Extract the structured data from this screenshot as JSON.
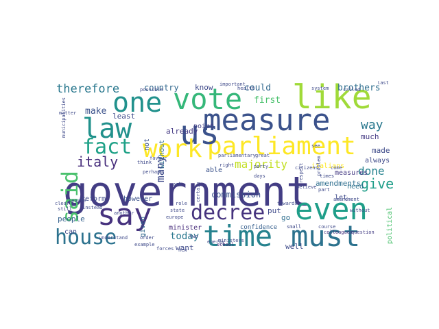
{
  "word_cloud": {
    "words": [
      {
        "text": "government",
        "color": "#433d84"
      },
      {
        "text": "measure",
        "color": "#3b528b"
      },
      {
        "text": "parliament",
        "color": "#fde725"
      },
      {
        "text": "vote",
        "color": "#35b779"
      },
      {
        "text": "like",
        "color": "#a0da39"
      },
      {
        "text": "one",
        "color": "#21918c"
      },
      {
        "text": "us",
        "color": "#3b528b"
      },
      {
        "text": "law",
        "color": "#21918c"
      },
      {
        "text": "fact",
        "color": "#1fa187"
      },
      {
        "text": "work",
        "color": "#fde725"
      },
      {
        "text": "said",
        "color": "#4ac16d"
      },
      {
        "text": "decree",
        "color": "#46337e"
      },
      {
        "text": "say",
        "color": "#46327e"
      },
      {
        "text": "even",
        "color": "#1f9e89"
      },
      {
        "text": "time",
        "color": "#26828e"
      },
      {
        "text": "must",
        "color": "#2c728e"
      },
      {
        "text": "house",
        "color": "#2c728e"
      },
      {
        "text": "italy",
        "color": "#472d7b"
      },
      {
        "text": "majority",
        "color": "#c2df23"
      },
      {
        "text": "therefore",
        "color": "#2a788e"
      },
      {
        "text": "country",
        "color": "#31688e"
      },
      {
        "text": "know",
        "color": "#3e4989"
      },
      {
        "text": "could",
        "color": "#31688e"
      },
      {
        "text": "brothers",
        "color": "#2e6e8e"
      },
      {
        "text": "first",
        "color": "#4ac16d"
      },
      {
        "text": "way",
        "color": "#2a788e"
      },
      {
        "text": "many",
        "color": "#3e4a89"
      },
      {
        "text": "done",
        "color": "#26828e"
      },
      {
        "text": "give",
        "color": "#1f9e89"
      },
      {
        "text": "amendments",
        "color": "#2e6e8e"
      },
      {
        "text": "least",
        "color": "#3e4989"
      },
      {
        "text": "make",
        "color": "#3b528b"
      },
      {
        "text": "already",
        "color": "#443983"
      },
      {
        "text": "not",
        "color": "#3b528b"
      },
      {
        "text": "point",
        "color": "#424086"
      },
      {
        "text": "without",
        "color": "#2e6e8e"
      },
      {
        "text": "able",
        "color": "#3b528b"
      },
      {
        "text": "italians",
        "color": "#fde725"
      },
      {
        "text": "much",
        "color": "#443983"
      },
      {
        "text": "made",
        "color": "#3e4a89"
      },
      {
        "text": "always",
        "color": "#3e4989"
      },
      {
        "text": "measures",
        "color": "#443983"
      },
      {
        "text": "need",
        "color": "#2c728e"
      },
      {
        "text": "let",
        "color": "#3e4989"
      },
      {
        "text": "go",
        "color": "#2e6e8e"
      },
      {
        "text": "reform",
        "color": "#3e4a89"
      },
      {
        "text": "however",
        "color": "#3b528b"
      },
      {
        "text": "given",
        "color": "#31688e"
      },
      {
        "text": "people",
        "color": "#35608d"
      },
      {
        "text": "can",
        "color": "#3e4a89"
      },
      {
        "text": "today",
        "color": "#2a788e"
      },
      {
        "text": "commission",
        "color": "#3b528b"
      },
      {
        "text": "put",
        "color": "#3e4989"
      },
      {
        "text": "minister",
        "color": "#472d7b"
      },
      {
        "text": "want",
        "color": "#3e4989"
      },
      {
        "text": "well",
        "color": "#3e4a89"
      },
      {
        "text": "political",
        "color": "#4ac16d"
      },
      {
        "text": "confidence",
        "color": "#355f8d"
      },
      {
        "text": "colleagues",
        "color": "#46327e"
      },
      {
        "text": "question",
        "color": "#433d84"
      },
      {
        "text": "school",
        "color": "#482475"
      },
      {
        "text": "parliamentary",
        "color": "#3e4989"
      },
      {
        "text": "great",
        "color": "#3e4989"
      },
      {
        "text": "important",
        "color": "#3e4989"
      },
      {
        "text": "health",
        "color": "#3e4989"
      },
      {
        "text": "system",
        "color": "#3e4989"
      },
      {
        "text": "called",
        "color": "#3e4989"
      },
      {
        "text": "last",
        "color": "#3e4989"
      },
      {
        "text": "possible",
        "color": "#3e4989"
      },
      {
        "text": "role",
        "color": "#3e4989"
      },
      {
        "text": "ask",
        "color": "#3e4989"
      },
      {
        "text": "days",
        "color": "#3e4989"
      },
      {
        "text": "believe",
        "color": "#3e4989"
      },
      {
        "text": "part",
        "color": "#3e4989"
      },
      {
        "text": "course",
        "color": "#3e4989"
      },
      {
        "text": "small",
        "color": "#3e4989"
      },
      {
        "text": "perhaps",
        "color": "#3e4989"
      },
      {
        "text": "favour",
        "color": "#3e4989"
      },
      {
        "text": "party",
        "color": "#3e4989"
      },
      {
        "text": "think",
        "color": "#3e4989"
      },
      {
        "text": "europe",
        "color": "#3e4989"
      },
      {
        "text": "state",
        "color": "#3e4989"
      },
      {
        "text": "certain",
        "color": "#3e4989"
      },
      {
        "text": "energy",
        "color": "#3e4989"
      },
      {
        "text": "two",
        "color": "#3e4989"
      },
      {
        "text": "forces",
        "color": "#3e4989"
      },
      {
        "text": "order",
        "color": "#3e4989"
      },
      {
        "text": "example",
        "color": "#3e4989"
      },
      {
        "text": "new",
        "color": "#3e4989"
      },
      {
        "text": "understand",
        "color": "#3e4989"
      },
      {
        "text": "clear",
        "color": "#3e4989"
      },
      {
        "text": "senate",
        "color": "#3e4989"
      },
      {
        "text": "instead",
        "color": "#3e4989"
      },
      {
        "text": "still",
        "color": "#3e4989"
      },
      {
        "text": "another",
        "color": "#3e4989"
      },
      {
        "text": "come",
        "color": "#3e4989"
      },
      {
        "text": "times",
        "color": "#3e4989"
      },
      {
        "text": "amendment",
        "color": "#3e4989"
      },
      {
        "text": "respect",
        "color": "#3e4989"
      },
      {
        "text": "problem",
        "color": "#3e4989"
      },
      {
        "text": "see",
        "color": "#3e4989"
      },
      {
        "text": "citizens",
        "color": "#3e4989"
      },
      {
        "text": "matter",
        "color": "#3e4989"
      },
      {
        "text": "municipalities",
        "color": "#3e4989"
      },
      {
        "text": "right",
        "color": "#3e4989"
      },
      {
        "text": "ministers",
        "color": "#3e4989"
      },
      {
        "text": "towards",
        "color": "#3e4989"
      },
      {
        "text": "without",
        "color": "#3e4989"
      }
    ]
  }
}
